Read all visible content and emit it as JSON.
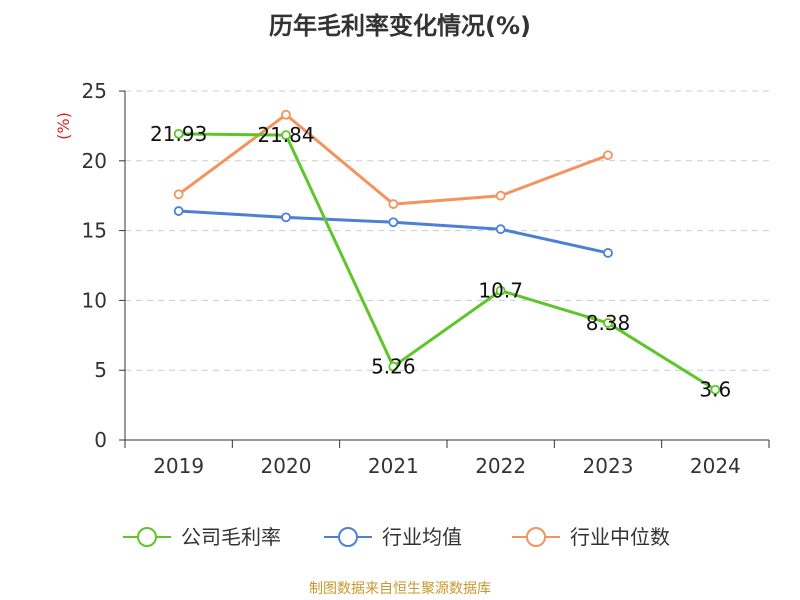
{
  "title": "历年毛利率变化情况(%)",
  "source_note": "制图数据来自恒生聚源数据库",
  "colors": {
    "company": "#5ec52a",
    "industry_avg": "#4e7fd7",
    "industry_median": "#f4935e",
    "unit_label": "#e02020",
    "source_note": "#c8982e",
    "axis_text": "#333333",
    "grid": "#cccccc"
  },
  "chart_data": {
    "type": "line",
    "title": "历年毛利率变化情况(%)",
    "ylabel": "(%)",
    "categories": [
      "2019",
      "2020",
      "2021",
      "2022",
      "2023",
      "2024"
    ],
    "ylim": [
      0,
      25
    ],
    "yticks": [
      "0",
      "5",
      "10",
      "15",
      "20",
      "25"
    ],
    "grid": "horizontal dashed",
    "legend_position": "bottom",
    "series": [
      {
        "name": "公司毛利率",
        "color": "#5ec52a",
        "values": [
          21.93,
          21.84,
          5.26,
          10.7,
          8.38,
          3.6
        ],
        "labels": [
          "21.93",
          "21.84",
          "5.26",
          "10.7",
          "8.38",
          "3.6"
        ]
      },
      {
        "name": "行业均值",
        "color": "#4e7fd7",
        "values": [
          16.4,
          15.95,
          15.6,
          15.1,
          13.4,
          null
        ]
      },
      {
        "name": "行业中位数",
        "color": "#f4935e",
        "values": [
          17.6,
          23.3,
          16.9,
          17.5,
          20.4,
          null
        ]
      }
    ]
  }
}
